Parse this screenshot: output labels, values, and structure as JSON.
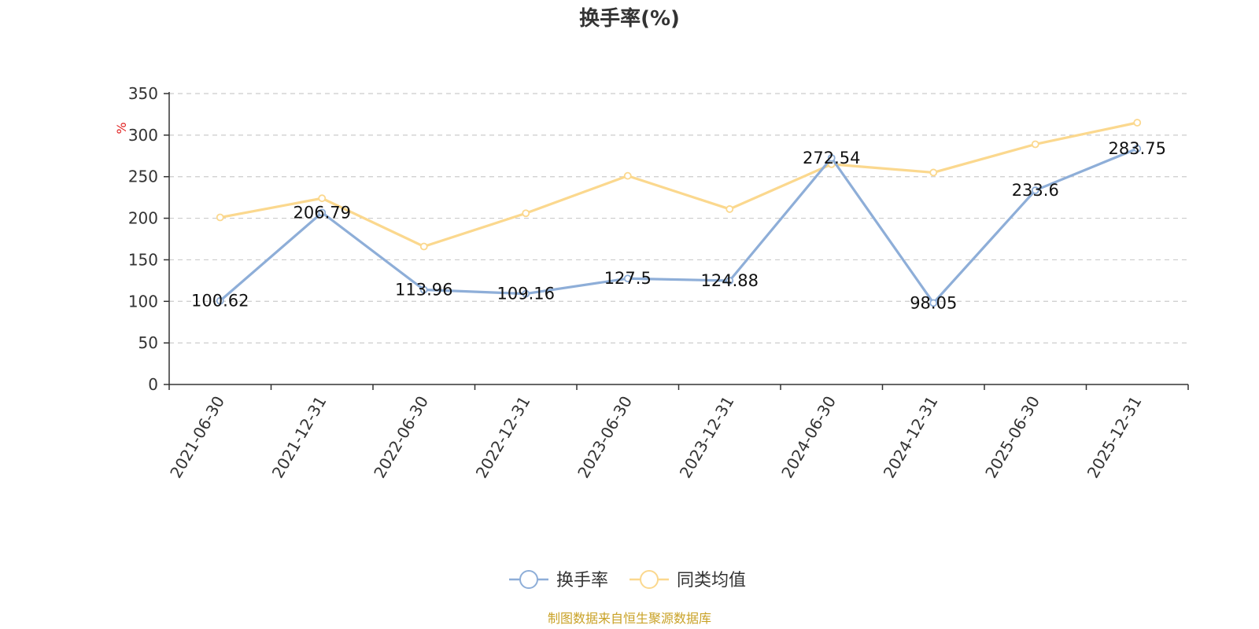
{
  "chart_data": {
    "type": "line",
    "title": "换手率(%)",
    "ylabel": "%",
    "ylim": [
      0,
      350
    ],
    "yticks": [
      0,
      50,
      100,
      150,
      200,
      250,
      300,
      350
    ],
    "grid": true,
    "legend_position": "bottom-center",
    "categories": [
      "2021-06-30",
      "2021-12-31",
      "2022-06-30",
      "2022-12-31",
      "2023-06-30",
      "2023-12-31",
      "2024-06-30",
      "2024-12-31",
      "2025-06-30",
      "2025-12-31"
    ],
    "series": [
      {
        "name": "换手率",
        "color": "#8eaed8",
        "values": [
          100.62,
          206.79,
          113.96,
          109.16,
          127.5,
          124.88,
          272.54,
          98.05,
          233.6,
          283.75
        ],
        "labels": [
          "100.62",
          "206.79",
          "113.96",
          "109.16",
          "127.5",
          "124.88",
          "272.54",
          "98.05",
          "233.6",
          "283.75"
        ]
      },
      {
        "name": "同类均值",
        "color": "#fbd88e",
        "values": [
          201,
          224,
          166,
          206,
          251,
          211,
          265,
          255,
          289,
          315
        ]
      }
    ]
  },
  "source_text": "制图数据来自恒生聚源数据库",
  "colors": {
    "unit": "#e02020",
    "source": "#c9a227",
    "axis": "#333333",
    "grid": "#cccccc"
  }
}
